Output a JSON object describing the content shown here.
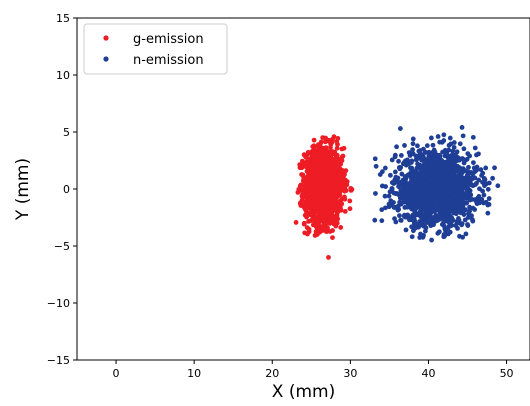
{
  "chart_data": {
    "type": "scatter",
    "title": "",
    "xlabel": "X (mm)",
    "ylabel": "Y (mm)",
    "xlim": [
      -5,
      53
    ],
    "ylim": [
      -15,
      15
    ],
    "xticks": [
      0,
      10,
      20,
      30,
      40,
      50
    ],
    "yticks": [
      -15,
      -10,
      -5,
      0,
      5,
      10,
      15
    ],
    "grid": false,
    "legend_position": "top-left",
    "series": [
      {
        "name": "g-emission",
        "color": "#ee1c25",
        "center": [
          26.6,
          0.2
        ],
        "x_range": [
          23.0,
          30.2
        ],
        "y_range": [
          -4.3,
          4.7
        ],
        "outliers": [
          [
            27.2,
            -6.0
          ]
        ],
        "x_spread_sd": 1.2,
        "y_spread_sd": 1.7
      },
      {
        "name": "n-emission",
        "color": "#1f3e96",
        "center": [
          41.0,
          0.0
        ],
        "x_range": [
          33.0,
          49.2
        ],
        "y_range": [
          -4.6,
          5.4
        ],
        "outliers": [
          [
            36.4,
            5.3
          ],
          [
            44.3,
            5.4
          ]
        ],
        "x_spread_sd": 2.6,
        "y_spread_sd": 1.6
      }
    ]
  }
}
